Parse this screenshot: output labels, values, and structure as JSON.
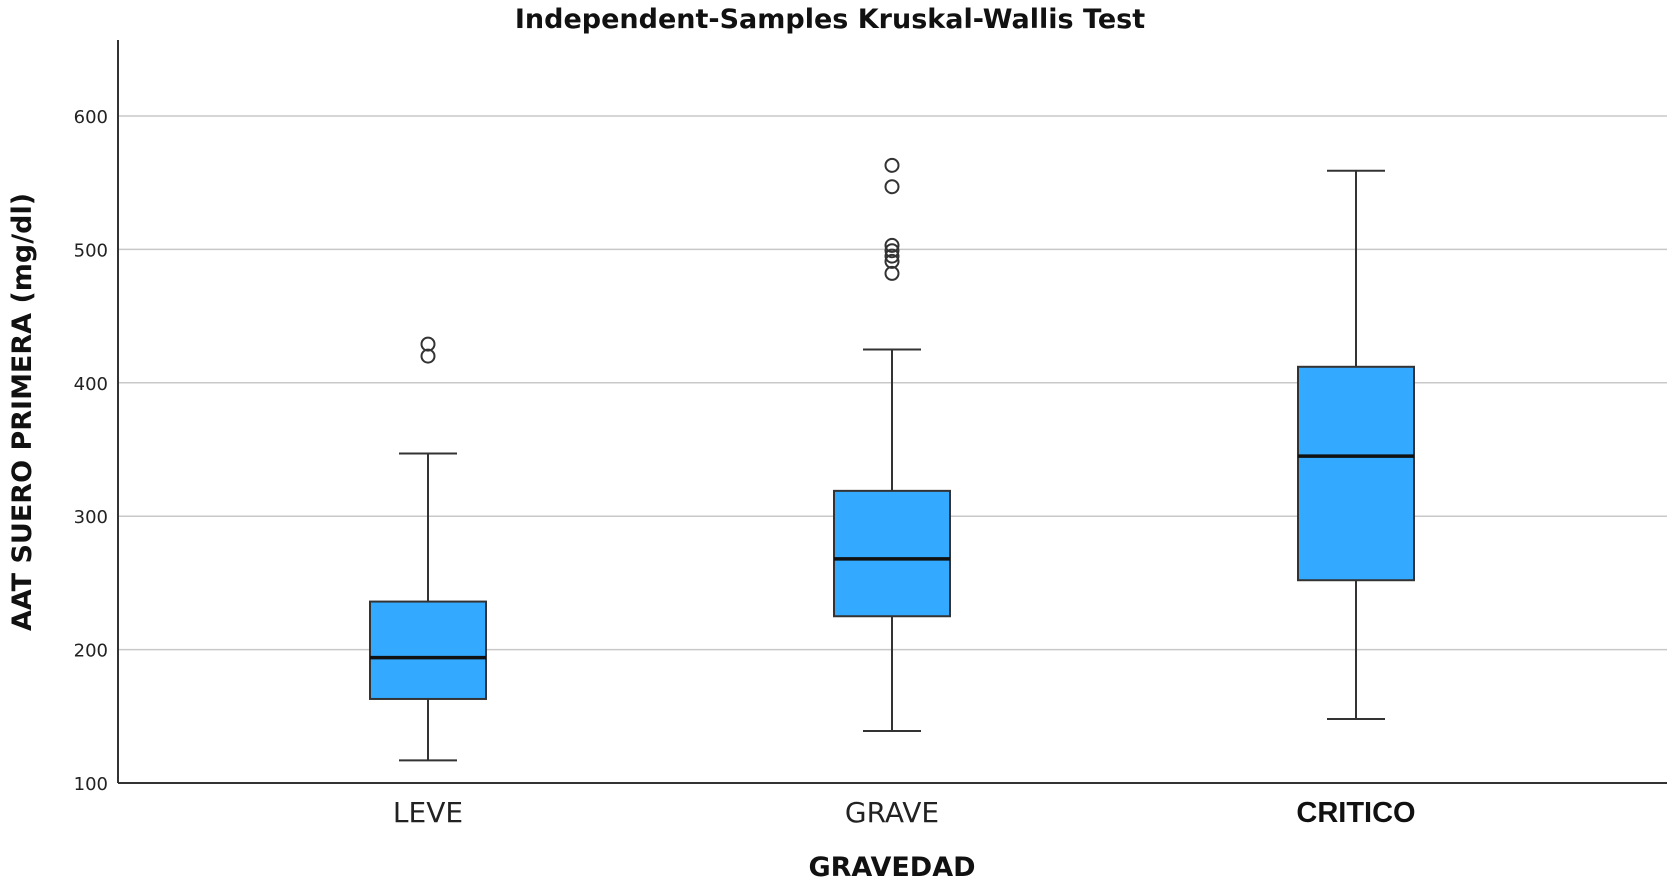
{
  "chart_data": {
    "type": "boxplot",
    "title": "Independent-Samples Kruskal-Wallis Test",
    "xlabel": "GRAVEDAD",
    "ylabel": "AAT SUERO PRIMERA (mg/dl)",
    "ylim": [
      100,
      650
    ],
    "yticks": [
      100,
      200,
      300,
      400,
      500,
      600
    ],
    "grid": true,
    "box_color": "#33aaff",
    "categories": [
      "LEVE",
      "GRAVE",
      "CRITICO"
    ],
    "boxes": [
      {
        "category": "LEVE",
        "whisker_low": 117,
        "q1": 163,
        "median": 194,
        "q3": 236,
        "whisker_high": 347,
        "outliers": [
          420,
          429
        ]
      },
      {
        "category": "GRAVE",
        "whisker_low": 139,
        "q1": 225,
        "median": 268,
        "q3": 319,
        "whisker_high": 425,
        "outliers": [
          482,
          491,
          495,
          499,
          503,
          547,
          563
        ]
      },
      {
        "category": "CRITICO",
        "whisker_low": 148,
        "q1": 252,
        "median": 345,
        "q3": 412,
        "whisker_high": 559,
        "outliers": []
      }
    ]
  }
}
